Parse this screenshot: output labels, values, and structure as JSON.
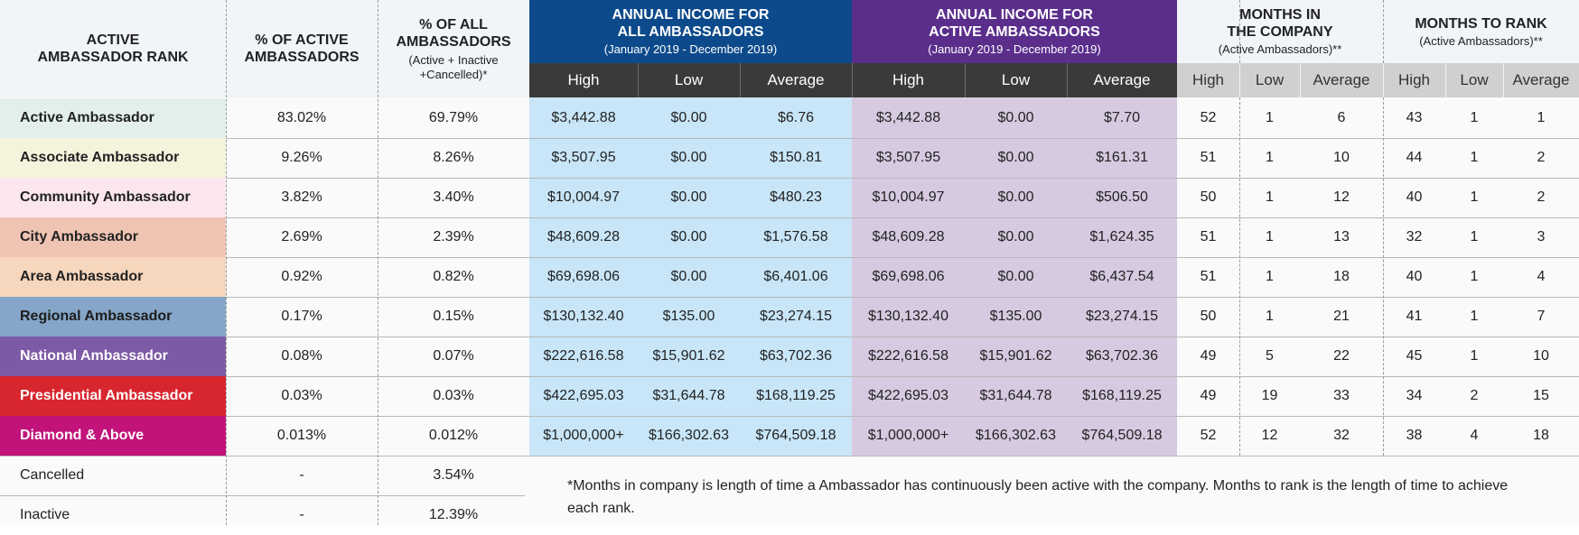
{
  "header": {
    "rank": [
      "ACTIVE",
      "AMBASSADOR RANK"
    ],
    "pct_active": [
      "% OF ACTIVE",
      "AMBASSADORS"
    ],
    "pct_all": [
      "% OF ALL",
      "AMBASSADORS"
    ],
    "pct_all_note": [
      "(Active + Inactive",
      "+Cancelled)*"
    ],
    "income_all": [
      "ANNUAL INCOME FOR",
      "ALL AMBASSADORS"
    ],
    "income_all_period": "(January 2019 - December 2019)",
    "income_active": [
      "ANNUAL INCOME FOR",
      "ACTIVE AMBASSADORS"
    ],
    "income_active_period": "(January 2019 - December 2019)",
    "months_company": [
      "MONTHS IN",
      "THE COMPANY"
    ],
    "months_company_note": "(Active Ambassadors)**",
    "months_rank": [
      "MONTHS TO RANK"
    ],
    "months_rank_note": "(Active Ambassadors)**",
    "sub_labels": [
      "High",
      "Low",
      "Average"
    ]
  },
  "colors": {
    "income_all_header": "#0d4a8b",
    "income_active_header": "#5b2e8c",
    "income_sub_header": "#3a3a3a",
    "months_sub_header": "#d0d0d0",
    "income_all_body": "#c8e6f8",
    "income_active_body": "#d6c9e0",
    "header_bg": "#f1f4f9",
    "body_bg": "#fafafa"
  },
  "rows": [
    {
      "rank": "Active Ambassador",
      "color": "#e3efec",
      "text_color": "#222222",
      "pct_active": "83.02%",
      "pct_all": "69.79%",
      "inc_all": [
        "$3,442.88",
        "$0.00",
        "$6.76"
      ],
      "inc_active": [
        "$3,442.88",
        "$0.00",
        "$7.70"
      ],
      "months_company": [
        "52",
        "1",
        "6"
      ],
      "months_rank": [
        "43",
        "1",
        "1"
      ]
    },
    {
      "rank": "Associate Ambassador",
      "color": "#f6f3dd",
      "text_color": "#222222",
      "pct_active": "9.26%",
      "pct_all": "8.26%",
      "inc_all": [
        "$3,507.95",
        "$0.00",
        "$150.81"
      ],
      "inc_active": [
        "$3,507.95",
        "$0.00",
        "$161.31"
      ],
      "months_company": [
        "51",
        "1",
        "10"
      ],
      "months_rank": [
        "44",
        "1",
        "2"
      ]
    },
    {
      "rank": "Community Ambassador",
      "color": "#fbe6ef",
      "text_color": "#222222",
      "pct_active": "3.82%",
      "pct_all": "3.40%",
      "inc_all": [
        "$10,004.97",
        "$0.00",
        "$480.23"
      ],
      "inc_active": [
        "$10,004.97",
        "$0.00",
        "$506.50"
      ],
      "months_company": [
        "50",
        "1",
        "12"
      ],
      "months_rank": [
        "40",
        "1",
        "2"
      ]
    },
    {
      "rank": "City Ambassador",
      "color": "#f0c4b3",
      "text_color": "#222222",
      "pct_active": "2.69%",
      "pct_all": "2.39%",
      "inc_all": [
        "$48,609.28",
        "$0.00",
        "$1,576.58"
      ],
      "inc_active": [
        "$48,609.28",
        "$0.00",
        "$1,624.35"
      ],
      "months_company": [
        "51",
        "1",
        "13"
      ],
      "months_rank": [
        "32",
        "1",
        "3"
      ]
    },
    {
      "rank": "Area Ambassador",
      "color": "#f6d6bc",
      "text_color": "#222222",
      "pct_active": "0.92%",
      "pct_all": "0.82%",
      "inc_all": [
        "$69,698.06",
        "$0.00",
        "$6,401.06"
      ],
      "inc_active": [
        "$69,698.06",
        "$0.00",
        "$6,437.54"
      ],
      "months_company": [
        "51",
        "1",
        "18"
      ],
      "months_rank": [
        "40",
        "1",
        "4"
      ]
    },
    {
      "rank": "Regional Ambassador",
      "color": "#85a6c8",
      "text_color": "#1c1c1c",
      "pct_active": "0.17%",
      "pct_all": "0.15%",
      "inc_all": [
        "$130,132.40",
        "$135.00",
        "$23,274.15"
      ],
      "inc_active": [
        "$130,132.40",
        "$135.00",
        "$23,274.15"
      ],
      "months_company": [
        "50",
        "1",
        "21"
      ],
      "months_rank": [
        "41",
        "1",
        "7"
      ]
    },
    {
      "rank": "National Ambassador",
      "color": "#7d5aa5",
      "text_color": "#ffffff",
      "pct_active": "0.08%",
      "pct_all": "0.07%",
      "inc_all": [
        "$222,616.58",
        "$15,901.62",
        "$63,702.36"
      ],
      "inc_active": [
        "$222,616.58",
        "$15,901.62",
        "$63,702.36"
      ],
      "months_company": [
        "49",
        "5",
        "22"
      ],
      "months_rank": [
        "45",
        "1",
        "10"
      ]
    },
    {
      "rank": "Presidential Ambassador",
      "color": "#d7262e",
      "text_color": "#ffffff",
      "pct_active": "0.03%",
      "pct_all": "0.03%",
      "inc_all": [
        "$422,695.03",
        "$31,644.78",
        "$168,119.25"
      ],
      "inc_active": [
        "$422,695.03",
        "$31,644.78",
        "$168,119.25"
      ],
      "months_company": [
        "49",
        "19",
        "33"
      ],
      "months_rank": [
        "34",
        "2",
        "15"
      ]
    },
    {
      "rank": "Diamond & Above",
      "color": "#c2137a",
      "text_color": "#ffffff",
      "pct_active": "0.013%",
      "pct_all": "0.012%",
      "inc_all": [
        "$1,000,000+",
        "$166,302.63",
        "$764,509.18"
      ],
      "inc_active": [
        "$1,000,000+",
        "$166,302.63",
        "$764,509.18"
      ],
      "months_company": [
        "52",
        "12",
        "32"
      ],
      "months_rank": [
        "38",
        "4",
        "18"
      ]
    }
  ],
  "extra_rows": [
    {
      "rank": "Cancelled",
      "pct_active": "-",
      "pct_all": "3.54%"
    },
    {
      "rank": "Inactive",
      "pct_active": "-",
      "pct_all": "12.39%"
    }
  ],
  "footnote": "*Months in company is length of time a Ambassador has continuously been active with the company. Months to rank is the length of time to achieve each rank."
}
